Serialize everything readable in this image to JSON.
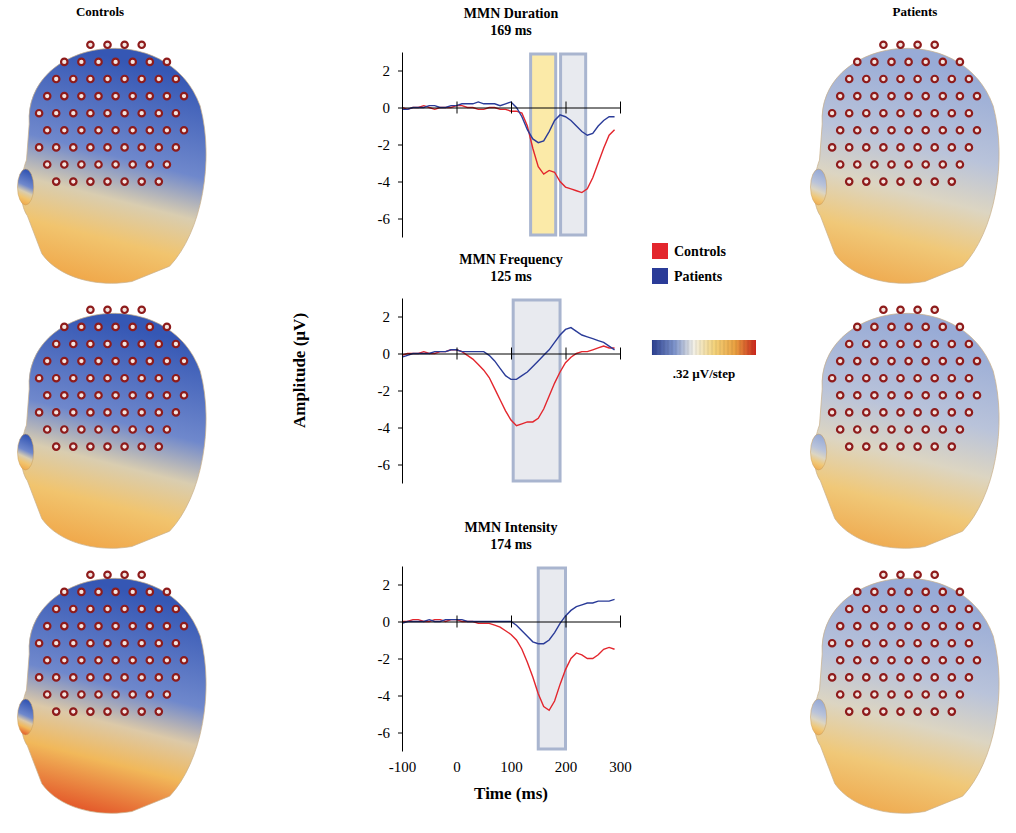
{
  "figure": {
    "left_title": "Controls",
    "right_title": "Patients",
    "colorbar_label": ".32 µV/step"
  },
  "chart_data": [
    {
      "type": "line",
      "title": "MMN Duration",
      "subtitle": "169 ms",
      "tick_labels": "y",
      "x": [
        -100,
        -90,
        -80,
        -70,
        -60,
        -50,
        -40,
        -30,
        -20,
        -10,
        0,
        10,
        20,
        30,
        40,
        50,
        60,
        70,
        80,
        90,
        100,
        110,
        120,
        130,
        140,
        150,
        160,
        170,
        180,
        190,
        200,
        210,
        220,
        230,
        240,
        250,
        260,
        270,
        280,
        290
      ],
      "xlim": [
        -100,
        300
      ],
      "xticks": [
        -100,
        0,
        100,
        200,
        300
      ],
      "ylim": [
        -7,
        3
      ],
      "yticks": [
        2,
        0,
        -2,
        -4,
        -6
      ],
      "windows": [
        {
          "x0": 136,
          "x1": 182,
          "color": "#fbeaa8"
        },
        {
          "x0": 191,
          "x1": 237,
          "color": "#e8eaef"
        }
      ],
      "series": [
        {
          "name": "Controls",
          "color": "#e3262d",
          "values": [
            0,
            -0.1,
            0,
            0,
            0.1,
            0,
            -0.1,
            0,
            0,
            0,
            0.1,
            0.1,
            0,
            0,
            -0.1,
            -0.1,
            0,
            0,
            -0.1,
            -0.1,
            -0.2,
            -0.2,
            -0.3,
            -1.0,
            -2.2,
            -3.2,
            -3.6,
            -3.4,
            -3.5,
            -4.0,
            -4.3,
            -4.4,
            -4.5,
            -4.6,
            -4.4,
            -3.8,
            -3.0,
            -2.2,
            -1.5,
            -1.2
          ]
        },
        {
          "name": "Patients",
          "color": "#2a3b98",
          "values": [
            -0.1,
            -0.1,
            0,
            0,
            0,
            0.1,
            0.1,
            0,
            0,
            0.1,
            0.1,
            0.2,
            0.2,
            0.2,
            0.3,
            0.2,
            0.2,
            0.2,
            0.1,
            0.2,
            0.3,
            0,
            -0.5,
            -1.2,
            -1.7,
            -1.9,
            -1.8,
            -1.3,
            -0.7,
            -0.4,
            -0.5,
            -0.7,
            -1.0,
            -1.3,
            -1.5,
            -1.4,
            -1.0,
            -0.7,
            -0.5,
            -0.5
          ]
        }
      ]
    },
    {
      "type": "line",
      "title": "MMN Frequency",
      "subtitle": "125 ms",
      "tick_labels": "y",
      "legend": "right",
      "y_label": "Amplitude (µV)",
      "x": [
        -100,
        -90,
        -80,
        -70,
        -60,
        -50,
        -40,
        -30,
        -20,
        -10,
        0,
        10,
        20,
        30,
        40,
        50,
        60,
        70,
        80,
        90,
        100,
        110,
        120,
        130,
        140,
        150,
        160,
        170,
        180,
        190,
        200,
        210,
        220,
        230,
        240,
        250,
        260,
        270,
        280,
        290
      ],
      "xlim": [
        -100,
        300
      ],
      "xticks": [
        -100,
        0,
        100,
        200,
        300
      ],
      "ylim": [
        -7,
        3
      ],
      "yticks": [
        2,
        0,
        -2,
        -4,
        -6
      ],
      "windows": [
        {
          "x0": 104,
          "x1": 190,
          "color": "#e8eaef"
        }
      ],
      "series": [
        {
          "name": "Controls",
          "color": "#e3262d",
          "values": [
            -0.1,
            0,
            0,
            0,
            0.1,
            0,
            0,
            0.1,
            0.1,
            0.2,
            0.2,
            0.1,
            -0.1,
            -0.3,
            -0.6,
            -0.9,
            -1.3,
            -1.9,
            -2.5,
            -3.1,
            -3.6,
            -3.9,
            -3.8,
            -3.7,
            -3.7,
            -3.5,
            -3.0,
            -2.3,
            -1.6,
            -1.0,
            -0.5,
            -0.2,
            0,
            0.1,
            0.1,
            0.2,
            0.3,
            0.4,
            0.3,
            0.3
          ]
        },
        {
          "name": "Patients",
          "color": "#2a3b98",
          "values": [
            -0.2,
            -0.1,
            0,
            0,
            0,
            0,
            0.1,
            0.1,
            0.1,
            0.2,
            0.2,
            0.1,
            0.1,
            0.1,
            0.1,
            0.1,
            -0.1,
            -0.4,
            -0.8,
            -1.2,
            -1.4,
            -1.4,
            -1.2,
            -1.0,
            -0.7,
            -0.4,
            -0.1,
            0.2,
            0.6,
            1.0,
            1.3,
            1.4,
            1.2,
            1.0,
            0.9,
            0.8,
            0.7,
            0.6,
            0.4,
            0.2
          ]
        }
      ]
    },
    {
      "type": "line",
      "title": "MMN Intensity",
      "subtitle": "174 ms",
      "tick_labels": true,
      "x_label": "Time (ms)",
      "x": [
        -100,
        -90,
        -80,
        -70,
        -60,
        -50,
        -40,
        -30,
        -20,
        -10,
        0,
        10,
        20,
        30,
        40,
        50,
        60,
        70,
        80,
        90,
        100,
        110,
        120,
        130,
        140,
        150,
        160,
        170,
        180,
        190,
        200,
        210,
        220,
        230,
        240,
        250,
        260,
        270,
        280,
        290
      ],
      "xlim": [
        -100,
        300
      ],
      "xticks": [
        -100,
        0,
        100,
        200,
        300
      ],
      "ylim": [
        -7,
        3
      ],
      "yticks": [
        2,
        0,
        -2,
        -4,
        -6
      ],
      "windows": [
        {
          "x0": 150,
          "x1": 200,
          "color": "#e8eaef"
        }
      ],
      "series": [
        {
          "name": "Controls",
          "color": "#e3262d",
          "values": [
            0,
            0,
            0.1,
            0.1,
            0,
            0,
            0.1,
            0.1,
            0,
            0.1,
            0.1,
            0,
            0,
            0,
            -0.1,
            -0.1,
            -0.1,
            -0.2,
            -0.3,
            -0.5,
            -0.7,
            -1.0,
            -1.5,
            -2.2,
            -3.0,
            -3.9,
            -4.6,
            -4.8,
            -4.3,
            -3.4,
            -2.6,
            -2.0,
            -1.7,
            -1.8,
            -2.0,
            -2.0,
            -1.8,
            -1.5,
            -1.4,
            -1.5
          ]
        },
        {
          "name": "Patients",
          "color": "#2a3b98",
          "values": [
            -0.1,
            0,
            0,
            0,
            0,
            0.1,
            0,
            0,
            0.1,
            0.1,
            0.1,
            0.1,
            0,
            0,
            0,
            0,
            0,
            0,
            0,
            0,
            0,
            -0.2,
            -0.5,
            -0.8,
            -1.1,
            -1.2,
            -1.2,
            -1.0,
            -0.6,
            -0.1,
            0.3,
            0.6,
            0.8,
            0.9,
            1.0,
            1.0,
            1.1,
            1.1,
            1.1,
            1.2
          ]
        }
      ]
    }
  ]
}
